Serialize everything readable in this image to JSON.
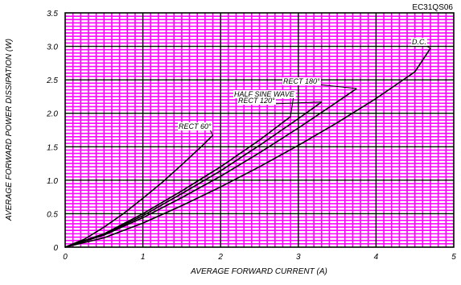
{
  "part_number": "EC31QS06",
  "chart_data": {
    "type": "line",
    "title": "",
    "xlabel": "AVERAGE FORWARD CURRENT (A)",
    "ylabel": "AVERAGE FORWARD POWER DISSIPATION (W)",
    "xlim": [
      0,
      5
    ],
    "ylim": [
      0,
      3.5
    ],
    "x_ticks": [
      "0",
      "1",
      "2",
      "3",
      "4",
      "5"
    ],
    "y_ticks": [
      "0",
      "0.5",
      "1.0",
      "1.5",
      "2.0",
      "2.5",
      "3.0",
      "3.5"
    ],
    "grid": true,
    "grid_color": "#ff00ff",
    "line_color": "#000000",
    "series": [
      {
        "name": "RECT 60°",
        "points": [
          [
            0,
            0
          ],
          [
            0.25,
            0.12
          ],
          [
            0.5,
            0.3
          ],
          [
            0.75,
            0.5
          ],
          [
            1.0,
            0.73
          ],
          [
            1.25,
            0.97
          ],
          [
            1.5,
            1.23
          ],
          [
            1.75,
            1.5
          ],
          [
            1.9,
            1.67
          ]
        ]
      },
      {
        "name": "HALF SINE WAVE",
        "points": [
          [
            0,
            0
          ],
          [
            0.5,
            0.2
          ],
          [
            1.0,
            0.5
          ],
          [
            1.5,
            0.84
          ],
          [
            2.0,
            1.2
          ],
          [
            2.5,
            1.6
          ],
          [
            2.9,
            1.95
          ]
        ]
      },
      {
        "name": "RECT 120°",
        "points": [
          [
            0,
            0
          ],
          [
            0.5,
            0.19
          ],
          [
            1.0,
            0.47
          ],
          [
            1.5,
            0.8
          ],
          [
            2.0,
            1.14
          ],
          [
            2.5,
            1.52
          ],
          [
            3.0,
            1.92
          ],
          [
            3.3,
            2.17
          ]
        ]
      },
      {
        "name": "RECT 180°",
        "points": [
          [
            0,
            0
          ],
          [
            0.5,
            0.18
          ],
          [
            1.0,
            0.44
          ],
          [
            1.5,
            0.74
          ],
          [
            2.0,
            1.06
          ],
          [
            2.5,
            1.41
          ],
          [
            3.0,
            1.78
          ],
          [
            3.5,
            2.17
          ],
          [
            3.75,
            2.37
          ]
        ]
      },
      {
        "name": "D.C.",
        "points": [
          [
            0,
            0
          ],
          [
            0.5,
            0.14
          ],
          [
            1.0,
            0.36
          ],
          [
            1.5,
            0.62
          ],
          [
            2.0,
            0.9
          ],
          [
            2.5,
            1.2
          ],
          [
            3.0,
            1.52
          ],
          [
            3.5,
            1.86
          ],
          [
            4.0,
            2.22
          ],
          [
            4.5,
            2.62
          ],
          [
            4.7,
            2.97
          ]
        ]
      }
    ]
  }
}
